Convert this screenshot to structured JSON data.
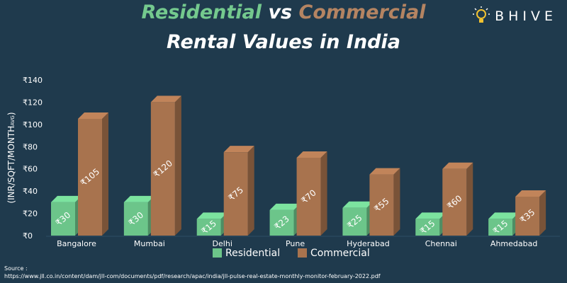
{
  "header": {
    "title_residential": "Residential",
    "title_vs": "vs",
    "title_commercial": "Commercial",
    "subtitle": "Rental Values in India"
  },
  "brand": {
    "name": "BHIVE",
    "icon": "lightbulb-icon"
  },
  "source": {
    "label": "Source :",
    "url": "https://www.jll.co.in/content/dam/jll-com/documents/pdf/research/apac/india/jll-pulse-real-estate-monthly-monitor-february-2022.pdf"
  },
  "colors": {
    "background": "#1f3a4d",
    "residential": "#6cc58a",
    "commercial": "#a8734e",
    "residential_title": "#74c98e",
    "commercial_title": "#b48462"
  },
  "chart_data": {
    "type": "bar",
    "ylabel": "(INR/SQFT/MONTH",
    "ylabel_sub": "AVG",
    "ylabel_close": ")",
    "ylim": [
      0,
      140
    ],
    "yticks": [
      0,
      20,
      40,
      60,
      80,
      100,
      120,
      140
    ],
    "ytick_labels": [
      "₹0",
      "₹20",
      "₹40",
      "₹60",
      "₹80",
      "₹100",
      "₹120",
      "₹140"
    ],
    "categories": [
      "Bangalore",
      "Mumbai",
      "Delhi",
      "Pune",
      "Hyderabad",
      "Chennai",
      "Ahmedabad"
    ],
    "series": [
      {
        "name": "Residential",
        "values": [
          30,
          30,
          15,
          23,
          25,
          15,
          15
        ],
        "labels": [
          "₹30",
          "₹30",
          "₹15",
          "₹23",
          "₹25",
          "₹15",
          "₹15"
        ]
      },
      {
        "name": "Commercial",
        "values": [
          105,
          120,
          75,
          70,
          55,
          60,
          35
        ],
        "labels": [
          "₹105",
          "₹120",
          "₹75",
          "₹70",
          "₹55",
          "₹60",
          "₹35"
        ]
      }
    ],
    "legend_position": "bottom",
    "grid": false
  }
}
